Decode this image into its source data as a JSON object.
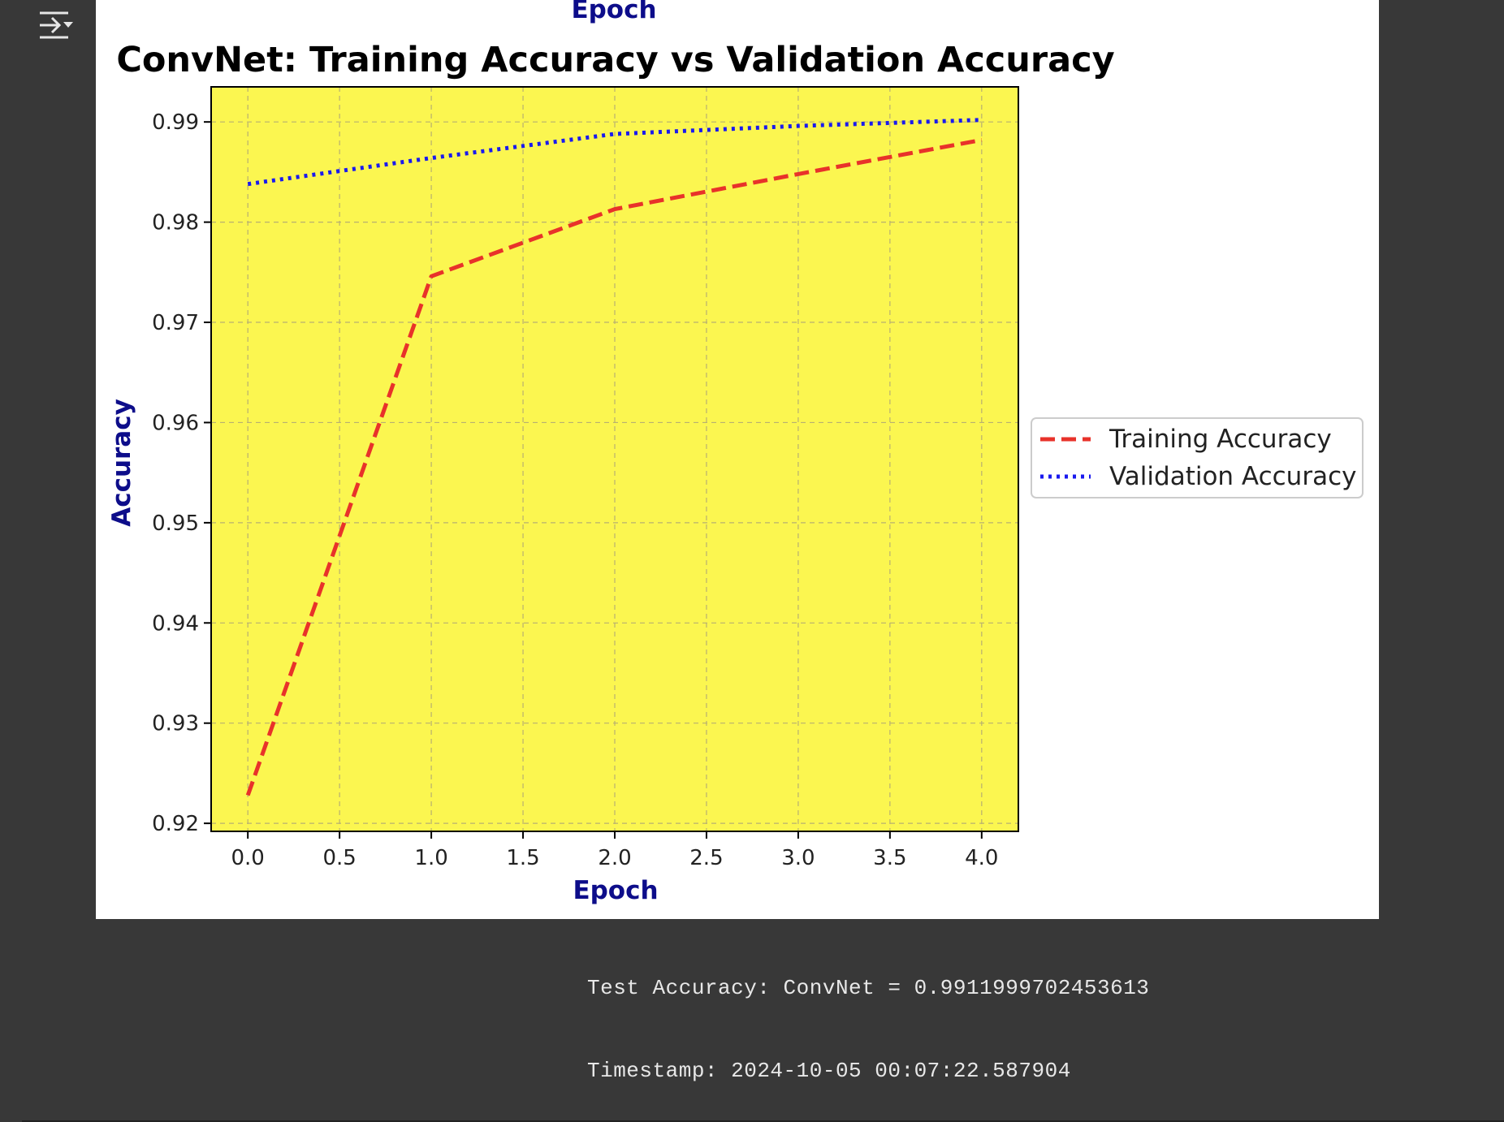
{
  "output": {
    "toggle_icon": "output-collapse-icon",
    "test_accuracy_line": "Test Accuracy: ConvNet = 0.9911999702453613",
    "timestamp_line": "Timestamp: 2024-10-05 00:07:22.587904"
  },
  "colors": {
    "page_bg": "#383838",
    "plot_bg": "#fbf650",
    "training": "#e8322a",
    "validation": "#1a1aee",
    "axis_label": "#0d0d8a"
  },
  "chart_data": {
    "type": "line",
    "title": "ConvNet: Training Accuracy vs Validation Accuracy",
    "cut_label": "Epoch",
    "xlabel": "Epoch",
    "ylabel": "Accuracy",
    "xlim": [
      -0.2,
      4.2
    ],
    "ylim": [
      0.9192,
      0.9935
    ],
    "xticks": [
      0.0,
      0.5,
      1.0,
      1.5,
      2.0,
      2.5,
      3.0,
      3.5,
      4.0
    ],
    "xtick_labels": [
      "0.0",
      "0.5",
      "1.0",
      "1.5",
      "2.0",
      "2.5",
      "3.0",
      "3.5",
      "4.0"
    ],
    "yticks": [
      0.92,
      0.93,
      0.94,
      0.95,
      0.96,
      0.97,
      0.98,
      0.99
    ],
    "ytick_labels": [
      "0.92",
      "0.93",
      "0.94",
      "0.95",
      "0.96",
      "0.97",
      "0.98",
      "0.99"
    ],
    "grid": true,
    "legend_position": "center-right-outside",
    "series": [
      {
        "name": "Training Accuracy",
        "style": "dashed",
        "color": "#e8322a",
        "x": [
          0,
          1,
          2,
          3,
          4
        ],
        "y": [
          0.9228,
          0.9746,
          0.9813,
          0.9848,
          0.9882
        ]
      },
      {
        "name": "Validation Accuracy",
        "style": "dotted",
        "color": "#1a1aee",
        "x": [
          0,
          1,
          2,
          3,
          4
        ],
        "y": [
          0.9838,
          0.9864,
          0.9888,
          0.9896,
          0.9902
        ]
      }
    ]
  }
}
